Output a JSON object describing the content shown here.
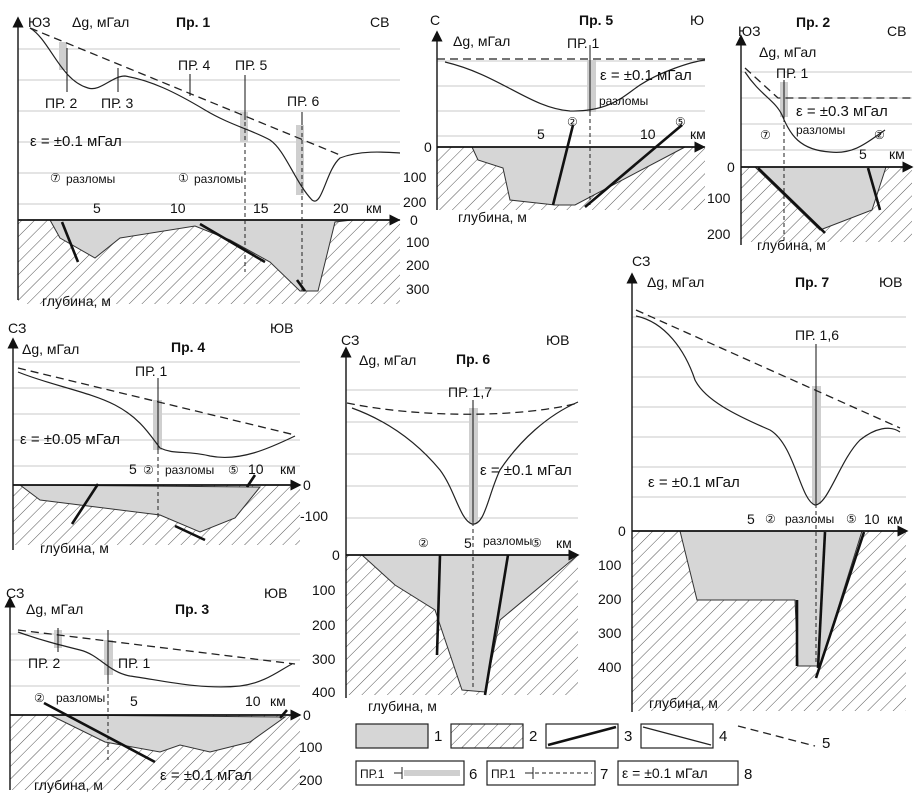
{
  "panels": {
    "p1": {
      "title": "Пр. 1",
      "dir_left": "ЮЗ",
      "dir_right": "СВ",
      "ylabel": "Δg, мГал",
      "km_label": "км",
      "depth_label": "глубина, м",
      "eps": "ε = ±0.1 мГал",
      "x_ticks": [
        "5",
        "10",
        "15",
        "20"
      ],
      "depth_ticks": [
        "0",
        "100",
        "200",
        "300"
      ],
      "profile_marks": [
        "ПР. 2",
        "ПР. 3",
        "ПР. 4",
        "ПР. 5",
        "ПР. 6"
      ],
      "faults": [
        {
          "num": "⑦",
          "label": "разломы"
        },
        {
          "num": "①",
          "label": "разломы"
        }
      ]
    },
    "p5": {
      "title": "Пр. 5",
      "dir_left": "С",
      "dir_right": "Ю",
      "ylabel": "Δg, мГал",
      "km_label": "км",
      "depth_label": "глубина, м",
      "eps": "ε = ±0.1 мГал",
      "x_ticks": [
        "5",
        "10"
      ],
      "depth_ticks": [
        "0",
        "100",
        "200"
      ],
      "profile_marks": [
        "ПР. 1"
      ],
      "faults_label": "разломы",
      "fault_nums": [
        "②",
        "⑤"
      ]
    },
    "p2": {
      "title": "Пр. 2",
      "dir_left": "ЮЗ",
      "dir_right": "СВ",
      "ylabel": "Δg, мГал",
      "km_label": "км",
      "depth_label": "глубина, м",
      "eps": "ε = ±0.3 мГал",
      "x_ticks": [
        "5"
      ],
      "depth_ticks": [
        "0",
        "100",
        "200"
      ],
      "profile_marks": [
        "ПР. 1"
      ],
      "faults_label": "разломы",
      "fault_nums": [
        "⑦",
        "②"
      ]
    },
    "p4": {
      "title": "Пр. 4",
      "dir_left": "СЗ",
      "dir_right": "ЮВ",
      "ylabel": "Δg, мГал",
      "km_label": "км",
      "depth_label": "глубина, м",
      "eps": "ε = ±0.05 мГал",
      "x_ticks": [
        "5",
        "10"
      ],
      "depth_ticks": [
        "0",
        "-100"
      ],
      "profile_marks": [
        "ПР. 1"
      ],
      "faults_label": "разломы",
      "fault_nums": [
        "②",
        "⑤"
      ]
    },
    "p6": {
      "title": "Пр. 6",
      "dir_left": "СЗ",
      "dir_right": "ЮВ",
      "ylabel": "Δg, мГал",
      "km_label": "км",
      "depth_label": "глубина, м",
      "eps": "ε = ±0.1 мГал",
      "x_ticks": [
        "5"
      ],
      "depth_ticks": [
        "0",
        "100",
        "200",
        "300",
        "400"
      ],
      "profile_marks": [
        "ПР. 1,7"
      ],
      "faults_label": "разломы",
      "fault_nums": [
        "②",
        "⑤"
      ]
    },
    "p7": {
      "title": "Пр. 7",
      "dir_left": "СЗ",
      "dir_right": "ЮВ",
      "ylabel": "Δg, мГал",
      "km_label": "км",
      "depth_label": "глубина, м",
      "eps": "ε = ±0.1 мГал",
      "x_ticks": [
        "5",
        "10"
      ],
      "depth_ticks": [
        "0",
        "100",
        "200",
        "300",
        "400"
      ],
      "profile_marks": [
        "ПР. 1,6"
      ],
      "faults_label": "разломы",
      "fault_nums": [
        "②",
        "⑤"
      ]
    },
    "p3": {
      "title": "Пр. 3",
      "dir_left": "СЗ",
      "dir_right": "ЮВ",
      "ylabel": "Δg, мГал",
      "km_label": "км",
      "depth_label": "глубина, м",
      "eps": "ε = ±0.1 мГал",
      "x_ticks": [
        "5",
        "10"
      ],
      "depth_ticks": [
        "0",
        "100",
        "200"
      ],
      "profile_marks": [
        "ПР. 2",
        "ПР. 1"
      ],
      "faults_label": "разломы",
      "fault_nums": [
        "②"
      ]
    }
  },
  "legend": {
    "items": [
      "1",
      "2",
      "3",
      "4",
      "5",
      "6",
      "7",
      "8"
    ],
    "profile_tag": "ПР.1",
    "eps": "ε = ±0.1 мГал"
  }
}
